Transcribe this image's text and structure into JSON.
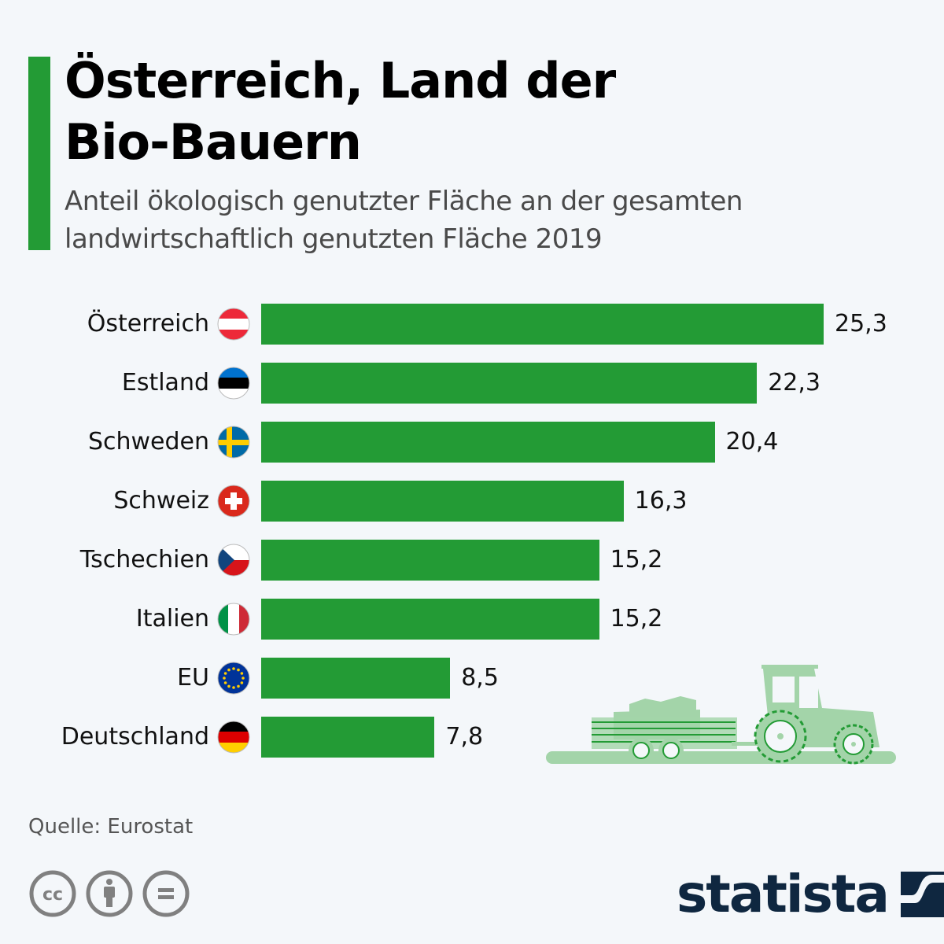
{
  "header": {
    "title_line1": "Österreich, Land der",
    "title_line2": "Bio-Bauern",
    "subtitle_line1": "Anteil ökologisch genutzter Fläche an der gesamten",
    "subtitle_line2": "landwirtschaftlich genutzten Fläche 2019"
  },
  "colors": {
    "accent": "#239b35",
    "bar": "#239b35",
    "tractor_light": "#a3d4a9",
    "logo": "#0f2740"
  },
  "chart_data": {
    "type": "bar",
    "orientation": "horizontal",
    "title": "Österreich, Land der Bio-Bauern",
    "subtitle": "Anteil ökologisch genutzter Fläche an der gesamten landwirtschaftlich genutzten Fläche 2019",
    "xlabel": "",
    "ylabel": "",
    "unit": "%",
    "categories": [
      "Österreich",
      "Estland",
      "Schweden",
      "Schweiz",
      "Tschechien",
      "Italien",
      "EU",
      "Deutschland"
    ],
    "flags": [
      "austria-flag",
      "estonia-flag",
      "sweden-flag",
      "switzerland-flag",
      "czechia-flag",
      "italy-flag",
      "eu-flag",
      "germany-flag"
    ],
    "values": [
      25.3,
      22.3,
      20.4,
      16.3,
      15.2,
      15.2,
      8.5,
      7.8
    ],
    "value_labels": [
      "25,3",
      "22,3",
      "20,4",
      "16,3",
      "15,2",
      "15,2",
      "8,5",
      "7,8"
    ],
    "xlim": [
      0,
      25.3
    ],
    "grid": false,
    "legend": "none"
  },
  "footer": {
    "source": "Quelle: Eurostat",
    "license_icons": [
      "cc-icon",
      "attribution-icon",
      "no-derivatives-icon"
    ],
    "brand": "statista"
  }
}
